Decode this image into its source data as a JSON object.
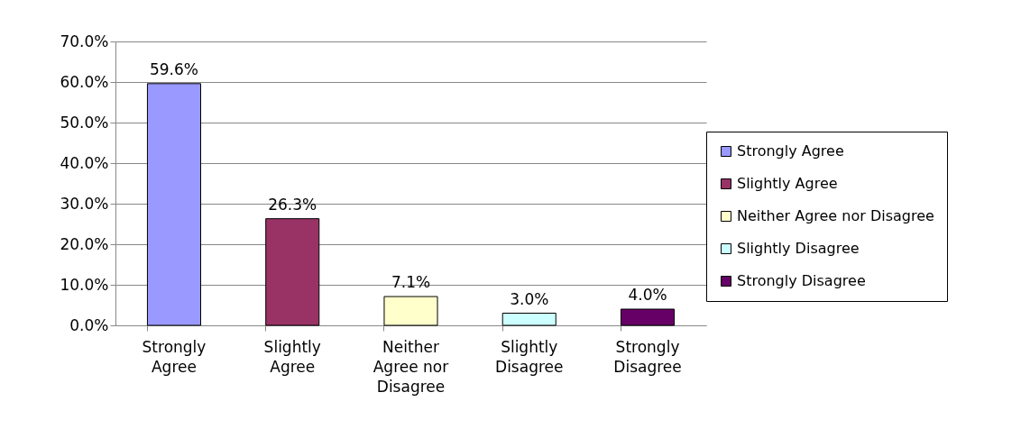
{
  "chart_data": {
    "type": "bar",
    "categories": [
      "Strongly Agree",
      "Slightly Agree",
      "Neither Agree nor Disagree",
      "Slightly Disagree",
      "Strongly Disagree"
    ],
    "series": [
      {
        "name": "Strongly Agree",
        "color": "#9999ff",
        "values": [
          59.6,
          null,
          null,
          null,
          null
        ],
        "value_labels": [
          "59.6%",
          null,
          null,
          null,
          null
        ]
      },
      {
        "name": "Slightly Agree",
        "color": "#993366",
        "values": [
          null,
          26.3,
          null,
          null,
          null
        ],
        "value_labels": [
          null,
          "26.3%",
          null,
          null,
          null
        ]
      },
      {
        "name": "Neither Agree nor Disagree",
        "color": "#ffffcc",
        "values": [
          null,
          null,
          7.1,
          null,
          null
        ],
        "value_labels": [
          null,
          null,
          "7.1%",
          null,
          null
        ]
      },
      {
        "name": "Slightly Disagree",
        "color": "#ccffff",
        "values": [
          null,
          null,
          null,
          3.0,
          null
        ],
        "value_labels": [
          null,
          null,
          null,
          "3.0%",
          null
        ]
      },
      {
        "name": "Strongly Disagree",
        "color": "#660066",
        "values": [
          null,
          null,
          null,
          null,
          4.0
        ],
        "value_labels": [
          null,
          null,
          null,
          null,
          "4.0%"
        ]
      }
    ],
    "ylim": [
      0,
      70
    ],
    "yticks": [
      {
        "value": 0,
        "label": "0.0%"
      },
      {
        "value": 10,
        "label": "10.0%"
      },
      {
        "value": 20,
        "label": "20.0%"
      },
      {
        "value": 30,
        "label": "30.0%"
      },
      {
        "value": 40,
        "label": "40.0%"
      },
      {
        "value": 50,
        "label": "50.0%"
      },
      {
        "value": 60,
        "label": "60.0%"
      },
      {
        "value": 70,
        "label": "70.0%"
      }
    ],
    "grid": "y",
    "legend": "right"
  }
}
